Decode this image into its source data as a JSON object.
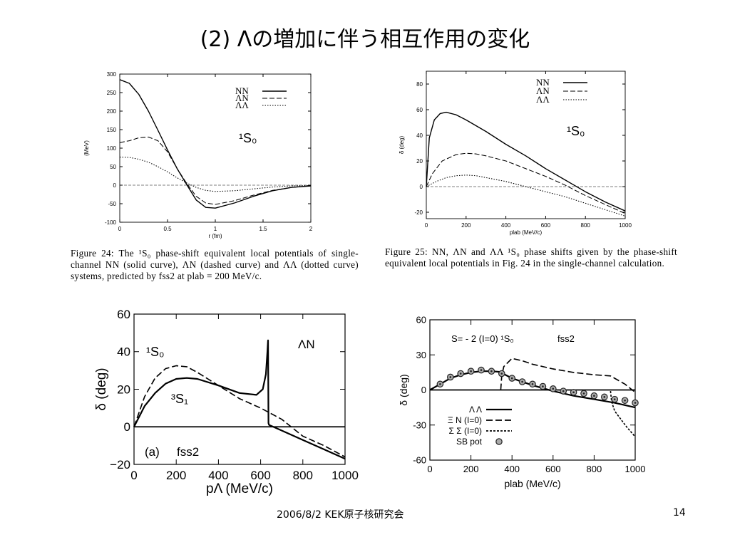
{
  "slide": {
    "title": "(2) Λの増加に伴う相互作用の変化",
    "footer": "2006/8/2  KEK原子核研究会",
    "page_number": "14"
  },
  "captions": {
    "fig24": "Figure 24: The ¹S₀ phase-shift equivalent local potentials of single-channel NN (solid curve), ΛN (dashed curve) and ΛΛ (dotted curve) systems, predicted by fss2 at plab = 200 MeV/c.",
    "fig25": "Figure 25: NN, ΛN and ΛΛ ¹S₀ phase shifts given by the phase-shift equivalent local potentials in Fig. 24 in the single-channel calculation."
  },
  "chart_data": [
    {
      "type": "line",
      "xlabel": "r (fm)",
      "ylabel": "(MeV)",
      "xlim": [
        0,
        2
      ],
      "ylim": [
        -100,
        300
      ],
      "xticks": [
        "0",
        "0.5",
        "1",
        "1.5",
        "2"
      ],
      "yticks": [
        "-100",
        "-50",
        "0",
        "50",
        "100",
        "150",
        "200",
        "250",
        "300"
      ],
      "annotations": [
        "¹S₀"
      ],
      "series": [
        {
          "name": "NN",
          "style": "solid",
          "x": [
            0,
            0.1,
            0.2,
            0.3,
            0.4,
            0.5,
            0.6,
            0.7,
            0.8,
            0.9,
            1.0,
            1.2,
            1.4,
            1.6,
            1.8,
            2.0
          ],
          "y": [
            285,
            275,
            245,
            200,
            148,
            95,
            45,
            2,
            -40,
            -60,
            -62,
            -48,
            -30,
            -15,
            -6,
            -2
          ]
        },
        {
          "name": "ΛN",
          "style": "dashed",
          "x": [
            0,
            0.1,
            0.2,
            0.3,
            0.4,
            0.5,
            0.6,
            0.7,
            0.8,
            0.9,
            1.0,
            1.2,
            1.4,
            1.6,
            1.8,
            2.0
          ],
          "y": [
            115,
            120,
            128,
            130,
            120,
            90,
            45,
            5,
            -30,
            -48,
            -52,
            -42,
            -27,
            -14,
            -6,
            -2
          ]
        },
        {
          "name": "ΛΛ",
          "style": "dotted",
          "x": [
            0,
            0.1,
            0.2,
            0.3,
            0.4,
            0.5,
            0.6,
            0.7,
            0.8,
            0.9,
            1.0,
            1.2,
            1.4,
            1.6,
            1.8,
            2.0
          ],
          "y": [
            76,
            75,
            70,
            62,
            50,
            36,
            20,
            6,
            -6,
            -14,
            -17,
            -15,
            -10,
            -5,
            -2,
            -1
          ]
        }
      ]
    },
    {
      "type": "line",
      "xlabel": "plab (MeV/c)",
      "ylabel": "δ (deg)",
      "xlim": [
        0,
        1000
      ],
      "ylim": [
        -25,
        90
      ],
      "xticks": [
        "0",
        "200",
        "400",
        "600",
        "800",
        "1000"
      ],
      "yticks": [
        "-20",
        "0",
        "20",
        "40",
        "60",
        "80"
      ],
      "annotations": [
        "¹S₀"
      ],
      "series": [
        {
          "name": "NN",
          "style": "solid",
          "x": [
            0,
            15,
            40,
            70,
            100,
            150,
            200,
            300,
            400,
            500,
            600,
            700,
            800,
            900,
            1000
          ],
          "y": [
            0,
            38,
            52,
            57,
            58,
            56,
            52,
            43,
            33,
            24,
            14,
            5,
            -4,
            -12,
            -19
          ]
        },
        {
          "name": "ΛN",
          "style": "dashed",
          "x": [
            0,
            30,
            80,
            150,
            200,
            250,
            300,
            400,
            500,
            600,
            700,
            800,
            900,
            1000
          ],
          "y": [
            0,
            10,
            20,
            25,
            26,
            25.5,
            24,
            20,
            14,
            8,
            1,
            -7,
            -14,
            -21
          ]
        },
        {
          "name": "ΛΛ",
          "style": "dotted",
          "x": [
            0,
            50,
            100,
            150,
            200,
            250,
            300,
            400,
            500,
            600,
            700,
            800,
            900,
            1000
          ],
          "y": [
            0,
            4,
            7,
            8.5,
            9,
            8.5,
            7,
            4,
            0,
            -4,
            -8,
            -13,
            -18,
            -23
          ]
        }
      ]
    },
    {
      "type": "line",
      "xlabel": "pΛ (MeV/c)",
      "ylabel": "δ (deg)",
      "xlim": [
        0,
        1000
      ],
      "ylim": [
        -20,
        60
      ],
      "xticks": [
        "0",
        "200",
        "400",
        "600",
        "800",
        "1000"
      ],
      "yticks": [
        "−20",
        "0",
        "20",
        "40",
        "60"
      ],
      "annotations": [
        "ΛN",
        "¹S₀",
        "³S₁",
        "(a)",
        "fss2"
      ],
      "series": [
        {
          "name": "¹S₀",
          "style": "dashed",
          "x": [
            0,
            50,
            100,
            150,
            200,
            250,
            300,
            400,
            500,
            600,
            700,
            800,
            900,
            1000
          ],
          "y": [
            0,
            16,
            26,
            31,
            32.5,
            32,
            29,
            22,
            15,
            10,
            4,
            -5,
            -10,
            -16
          ]
        },
        {
          "name": "³S₁",
          "style": "solid",
          "x": [
            0,
            50,
            100,
            150,
            200,
            250,
            300,
            400,
            500,
            580,
            610,
            625,
            632,
            635,
            637,
            640,
            700,
            800,
            900,
            1000
          ],
          "y": [
            0,
            11,
            18,
            23,
            25.5,
            26,
            25.5,
            22,
            18,
            17,
            20,
            28,
            40,
            46,
            2,
            1,
            -2,
            -7,
            -12,
            -17
          ]
        }
      ]
    },
    {
      "type": "line",
      "xlabel": "plab (MeV/c)",
      "ylabel": "δ (deg)",
      "xlim": [
        0,
        1000
      ],
      "ylim": [
        -60,
        60
      ],
      "xticks": [
        "0",
        "200",
        "400",
        "600",
        "800",
        "1000"
      ],
      "yticks": [
        "-60",
        "-30",
        "0",
        "30",
        "60"
      ],
      "annotations": [
        "S= - 2 (I=0) ¹S₀",
        "fss2"
      ],
      "series": [
        {
          "name": "Λ Λ",
          "style": "solid",
          "x": [
            0,
            50,
            100,
            150,
            200,
            250,
            300,
            340,
            400,
            500,
            600,
            700,
            800,
            900,
            1000
          ],
          "y": [
            0,
            5,
            10,
            13,
            15,
            16,
            16,
            15.5,
            10,
            4,
            -1,
            -5,
            -8,
            -11,
            -15
          ]
        },
        {
          "name": "Ξ N (I=0)",
          "style": "dashed",
          "x": [
            345,
            350,
            360,
            400,
            450,
            500,
            600,
            700,
            800,
            880,
            900,
            950,
            1000
          ],
          "y": [
            0,
            12,
            20,
            27,
            25,
            22,
            18,
            15,
            13,
            12,
            10,
            5,
            -2
          ]
        },
        {
          "name": "Σ Σ (I=0)",
          "style": "dotted",
          "x": [
            880,
            885,
            900,
            930,
            960,
            1000
          ],
          "y": [
            -1,
            -10,
            -18,
            -25,
            -32,
            -40
          ]
        },
        {
          "name": "SB pot",
          "style": "markers",
          "x": [
            50,
            100,
            150,
            200,
            250,
            300,
            350,
            400,
            450,
            500,
            550,
            600,
            650,
            700,
            750,
            800,
            850,
            900,
            950,
            1000
          ],
          "y": [
            5,
            11,
            14,
            16,
            17,
            16,
            14,
            10,
            7,
            5,
            3,
            1,
            -1,
            -2,
            -3,
            -5,
            -6,
            -8,
            -9,
            -11
          ]
        }
      ]
    }
  ]
}
